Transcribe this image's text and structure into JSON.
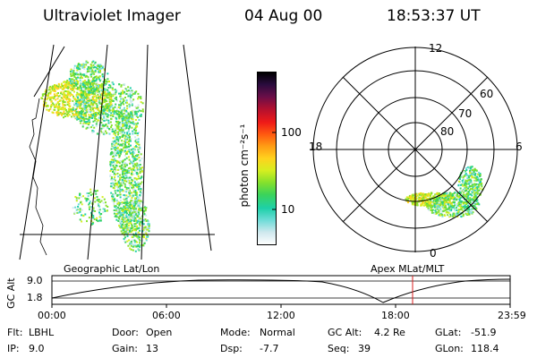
{
  "header": {
    "instrument": "Ultraviolet Imager",
    "date": "04 Aug 00",
    "time": "18:53:37 UT"
  },
  "colors": {
    "scale": [
      "#fefefe",
      "#cfe8ee",
      "#6fdcd8",
      "#1ed0a8",
      "#3bd35a",
      "#86e12c",
      "#d6ee20",
      "#ffd21e",
      "#ff9d14",
      "#ff5a10",
      "#ef1a18",
      "#b01030",
      "#680e48",
      "#2a0c3e",
      "#000000"
    ],
    "red_marker": "#d81e1e"
  },
  "colorbar": {
    "label": "photon cm⁻²s⁻¹",
    "tick_100": "100",
    "tick_10": "10"
  },
  "map_left": {
    "caption": "Geographic Lat/Lon"
  },
  "map_right": {
    "caption": "Apex MLat/MLT",
    "mlt_top": "12",
    "mlt_left": "18",
    "mlt_right": "6",
    "mlt_bottom": "0",
    "lat_60": "60",
    "lat_70": "70",
    "lat_80": "80"
  },
  "altitude_plot": {
    "ylabel": "GC Alt",
    "ytick_high": "9.0",
    "ytick_low": "1.8",
    "xticks": [
      "00:00",
      "06:00",
      "12:00",
      "18:00",
      "23:59"
    ]
  },
  "status": {
    "flt_label": "Flt:",
    "flt_value": "LBHL",
    "ip_label": "IP:",
    "ip_value": "9.0",
    "door_label": "Door:",
    "door_value": "Open",
    "gain_label": "Gain:",
    "gain_value": "13",
    "mode_label": "Mode:",
    "mode_value": "Normal",
    "dsp_label": "Dsp:",
    "dsp_value": "-7.7",
    "gcalt_label": "GC Alt:",
    "gcalt_value": "4.2 Re",
    "seq_label": "Seq:",
    "seq_value": "39",
    "glat_label": "GLat:",
    "glat_value": "-51.9",
    "glon_label": "GLon:",
    "glon_value": "118.4"
  }
}
